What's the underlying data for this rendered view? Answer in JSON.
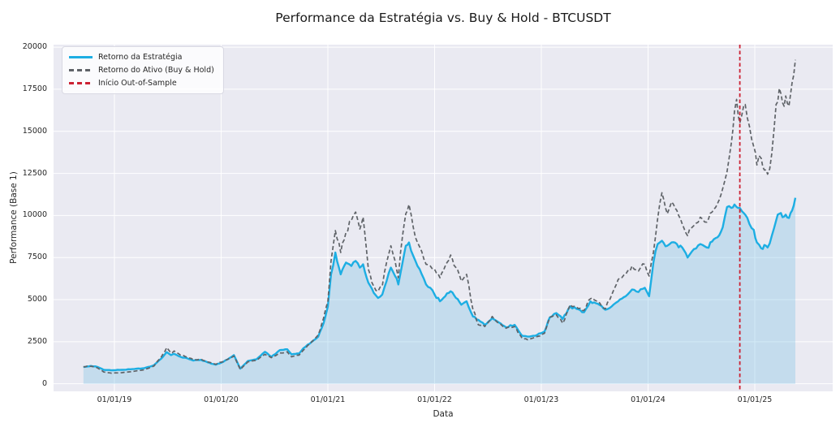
{
  "title": "Performance da Estratégia vs. Buy & Hold - BTCUSDT",
  "xlabel": "Data",
  "ylabel": "Performance (Base 1)",
  "colors": {
    "plot_background": "#eaeaf2",
    "grid": "#ffffff",
    "strategy_line": "#1daee3",
    "strategy_fill": "#7dc3e6",
    "buyhold_line": "#5f6368",
    "oos_vline": "#cc2233",
    "text": "#262626"
  },
  "legend": {
    "items": [
      {
        "label": "Retorno da Estratégia",
        "color": "#1daee3",
        "dash": "solid"
      },
      {
        "label": "Retorno do Ativo (Buy & Hold)",
        "color": "#5f6368",
        "dash": "dashed"
      },
      {
        "label": "Início Out-of-Sample",
        "color": "#cc2233",
        "dash": "dashed"
      }
    ]
  },
  "chart_data": {
    "type": "line",
    "title": "Performance da Estratégia vs. Buy & Hold - BTCUSDT",
    "xlabel": "Data",
    "ylabel": "Performance (Base 1)",
    "grid": true,
    "legend_position": "upper left",
    "x_unit": "decimal_year",
    "xlim": [
      2018.43,
      2025.73
    ],
    "ylim": [
      -450,
      20150
    ],
    "x_ticks": [
      {
        "pos": 2019,
        "label": "01/01/19"
      },
      {
        "pos": 2020,
        "label": "01/01/20"
      },
      {
        "pos": 2021,
        "label": "01/01/21"
      },
      {
        "pos": 2022,
        "label": "01/01/22"
      },
      {
        "pos": 2023,
        "label": "01/01/23"
      },
      {
        "pos": 2024,
        "label": "01/01/24"
      },
      {
        "pos": 2025,
        "label": "01/01/25"
      }
    ],
    "y_ticks": [
      {
        "pos": 0,
        "label": "0"
      },
      {
        "pos": 2500,
        "label": "2500"
      },
      {
        "pos": 5000,
        "label": "5000"
      },
      {
        "pos": 7500,
        "label": "7500"
      },
      {
        "pos": 10000,
        "label": "10000"
      },
      {
        "pos": 12500,
        "label": "12500"
      },
      {
        "pos": 15000,
        "label": "15000"
      },
      {
        "pos": 17500,
        "label": "17500"
      },
      {
        "pos": 20000,
        "label": "20000"
      }
    ],
    "x": [
      2018.71,
      2018.78,
      2018.84,
      2018.9,
      2018.97,
      2019.07,
      2019.17,
      2019.28,
      2019.37,
      2019.44,
      2019.49,
      2019.53,
      2019.56,
      2019.62,
      2019.68,
      2019.74,
      2019.81,
      2019.87,
      2019.95,
      2020.02,
      2020.12,
      2020.18,
      2020.25,
      2020.33,
      2020.41,
      2020.47,
      2020.55,
      2020.62,
      2020.66,
      2020.73,
      2020.79,
      2020.85,
      2020.91,
      2020.96,
      2021.0,
      2021.03,
      2021.07,
      2021.12,
      2021.17,
      2021.22,
      2021.26,
      2021.3,
      2021.33,
      2021.38,
      2021.43,
      2021.47,
      2021.51,
      2021.55,
      2021.59,
      2021.63,
      2021.66,
      2021.7,
      2021.73,
      2021.76,
      2021.8,
      2021.84,
      2021.88,
      2021.92,
      2021.96,
      2022.0,
      2022.05,
      2022.1,
      2022.15,
      2022.2,
      2022.25,
      2022.3,
      2022.36,
      2022.41,
      2022.47,
      2022.54,
      2022.6,
      2022.67,
      2022.75,
      2022.82,
      2022.89,
      2022.96,
      2023.03,
      2023.08,
      2023.14,
      2023.2,
      2023.27,
      2023.33,
      2023.4,
      2023.46,
      2023.53,
      2023.6,
      2023.66,
      2023.72,
      2023.79,
      2023.85,
      2023.91,
      2023.97,
      2024.01,
      2024.05,
      2024.09,
      2024.13,
      2024.18,
      2024.22,
      2024.27,
      2024.32,
      2024.37,
      2024.43,
      2024.49,
      2024.55,
      2024.6,
      2024.65,
      2024.7,
      2024.74,
      2024.78,
      2024.81,
      2024.83,
      2024.86,
      2024.88,
      2024.91,
      2024.95,
      2024.99,
      2025.02,
      2025.06,
      2025.09,
      2025.12,
      2025.16,
      2025.2,
      2025.23,
      2025.26,
      2025.29,
      2025.32,
      2025.35,
      2025.38
    ],
    "series": [
      {
        "name": "Retorno da Estratégia",
        "color": "#1daee3",
        "style": "solid",
        "fill_to_zero": true,
        "values": [
          1000,
          1060,
          1000,
          830,
          800,
          830,
          870,
          930,
          1100,
          1500,
          1880,
          1700,
          1780,
          1600,
          1520,
          1380,
          1420,
          1280,
          1130,
          1300,
          1700,
          900,
          1350,
          1450,
          1900,
          1600,
          2000,
          2050,
          1750,
          1800,
          2200,
          2500,
          2800,
          3600,
          4600,
          6500,
          7800,
          6500,
          7200,
          7000,
          7300,
          6900,
          7100,
          6000,
          5400,
          5100,
          5300,
          6100,
          6900,
          6400,
          5900,
          7200,
          8200,
          8400,
          7600,
          7000,
          6500,
          5900,
          5700,
          5300,
          4900,
          5200,
          5500,
          5100,
          4700,
          4900,
          4000,
          3800,
          3500,
          3900,
          3650,
          3350,
          3500,
          2850,
          2800,
          2900,
          3100,
          3950,
          4200,
          3850,
          4600,
          4450,
          4250,
          4900,
          4750,
          4400,
          4600,
          4900,
          5200,
          5600,
          5450,
          5700,
          5200,
          7200,
          8300,
          8500,
          8200,
          8400,
          8300,
          8100,
          7500,
          8000,
          8300,
          8100,
          8450,
          8700,
          9300,
          10500,
          10450,
          10650,
          10500,
          10450,
          10250,
          10050,
          9500,
          9150,
          8400,
          8050,
          8250,
          8100,
          8800,
          9700,
          10100,
          9900,
          10050,
          9850,
          10300,
          11050
        ]
      },
      {
        "name": "Retorno do Ativo (Buy & Hold)",
        "color": "#5f6368",
        "style": "dashed",
        "fill_to_zero": false,
        "values": [
          1000,
          1040,
          950,
          700,
          630,
          660,
          730,
          830,
          1050,
          1600,
          2150,
          1820,
          1950,
          1700,
          1580,
          1420,
          1460,
          1300,
          1160,
          1320,
          1650,
          850,
          1300,
          1400,
          1750,
          1550,
          1830,
          1900,
          1600,
          1700,
          2100,
          2500,
          2900,
          3900,
          4900,
          7300,
          9100,
          7800,
          9000,
          9700,
          10200,
          9200,
          9900,
          6800,
          5800,
          5500,
          5800,
          7200,
          8200,
          7300,
          6300,
          8800,
          10100,
          10650,
          9300,
          8400,
          7850,
          7100,
          7000,
          6800,
          6300,
          7000,
          7650,
          6900,
          6100,
          6500,
          4400,
          3500,
          3400,
          4000,
          3600,
          3300,
          3400,
          2700,
          2650,
          2800,
          3000,
          3950,
          4100,
          3600,
          4700,
          4550,
          4350,
          5050,
          4900,
          4450,
          5300,
          6200,
          6500,
          7000,
          6700,
          7100,
          6400,
          7800,
          9800,
          11350,
          10100,
          10800,
          10300,
          9500,
          8800,
          9400,
          9900,
          9600,
          10200,
          10700,
          11600,
          12600,
          14300,
          16200,
          16900,
          15500,
          16000,
          16600,
          15300,
          14100,
          13000,
          13400,
          12700,
          12450,
          13700,
          16600,
          17550,
          16700,
          17100,
          16500,
          17900,
          19250
        ]
      }
    ],
    "annotations": {
      "oos_vline": {
        "label": "Início Out-of-Sample",
        "x": 2024.86,
        "color": "#cc2233",
        "style": "dashed"
      }
    }
  }
}
